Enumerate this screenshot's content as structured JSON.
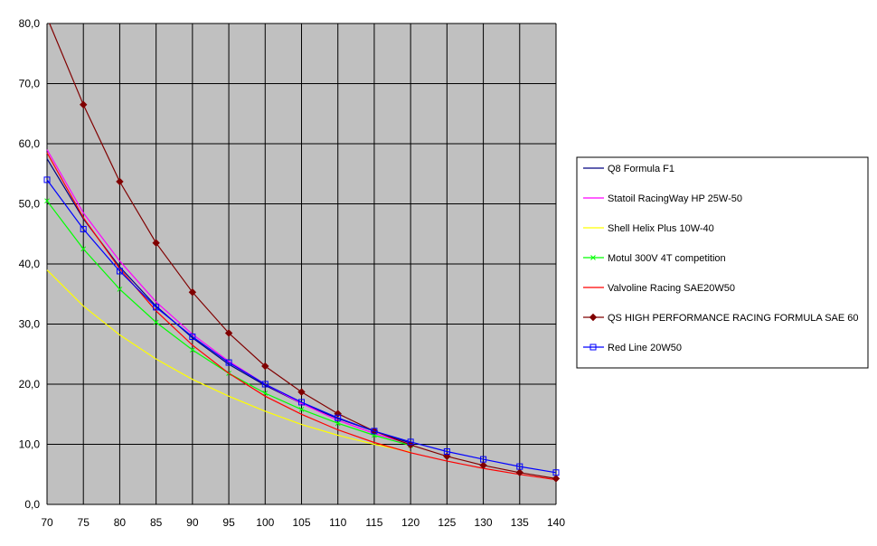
{
  "chart_data": {
    "type": "line",
    "x": [
      70,
      75,
      80,
      85,
      90,
      95,
      100,
      105,
      110,
      115,
      120,
      125,
      130,
      135,
      140
    ],
    "xlim": [
      70,
      140
    ],
    "ylim": [
      0,
      80
    ],
    "x_ticks": [
      "70",
      "75",
      "80",
      "85",
      "90",
      "95",
      "100",
      "105",
      "110",
      "115",
      "120",
      "125",
      "130",
      "135",
      "140"
    ],
    "y_ticks": [
      "0,0",
      "10,0",
      "20,0",
      "30,0",
      "40,0",
      "50,0",
      "60,0",
      "70,0",
      "80,0"
    ],
    "plot_background": "#c0c0c0",
    "grid": true,
    "legend_position": "right",
    "series": [
      {
        "name": "Q8 Formula F1",
        "color": "#000080",
        "marker": "none",
        "values": [
          57.5,
          47.5,
          39.5,
          33.0,
          27.7,
          23.3,
          19.8,
          16.8,
          14.3,
          12.2,
          10.2,
          null,
          null,
          null,
          null
        ]
      },
      {
        "name": "Statoil RacingWay HP 25W-50",
        "color": "#ff00ff",
        "marker": "none",
        "values": [
          59.0,
          48.5,
          40.5,
          33.7,
          28.3,
          23.8,
          20.0,
          16.8,
          14.0,
          11.8,
          10.0,
          null,
          null,
          null,
          null
        ]
      },
      {
        "name": "Shell Helix Plus 10W-40",
        "color": "#ffff00",
        "marker": "none",
        "values": [
          39.0,
          33.0,
          28.2,
          24.2,
          20.8,
          18.0,
          15.5,
          13.3,
          11.5,
          10.0,
          8.7,
          null,
          null,
          null,
          null
        ]
      },
      {
        "name": "Motul 300V 4T competition",
        "color": "#00ff00",
        "marker": "x",
        "values": [
          50.5,
          42.5,
          35.8,
          30.3,
          25.7,
          21.8,
          18.5,
          15.8,
          13.5,
          11.5,
          9.8,
          null,
          null,
          null,
          null
        ]
      },
      {
        "name": "Valvoline Racing SAE20W50",
        "color": "#ff0000",
        "marker": "none",
        "values": [
          58.5,
          47.7,
          39.2,
          32.2,
          26.5,
          21.8,
          18.0,
          15.0,
          12.4,
          10.3,
          8.6,
          7.2,
          6.0,
          5.0,
          4.1
        ]
      },
      {
        "name": "QS HIGH PERFORMANCE RACING FORMULA SAE 60",
        "color": "#800000",
        "marker": "diamond",
        "values": [
          81.0,
          66.5,
          53.7,
          43.5,
          35.3,
          28.5,
          23.0,
          18.7,
          15.1,
          12.2,
          9.9,
          8.0,
          6.5,
          5.3,
          4.3
        ]
      },
      {
        "name": "Red Line 20W50",
        "color": "#0000ff",
        "marker": "square",
        "values": [
          54.0,
          45.8,
          38.8,
          32.8,
          27.9,
          23.6,
          20.0,
          17.0,
          14.4,
          12.2,
          10.4,
          8.8,
          7.5,
          6.3,
          5.3
        ]
      }
    ]
  }
}
